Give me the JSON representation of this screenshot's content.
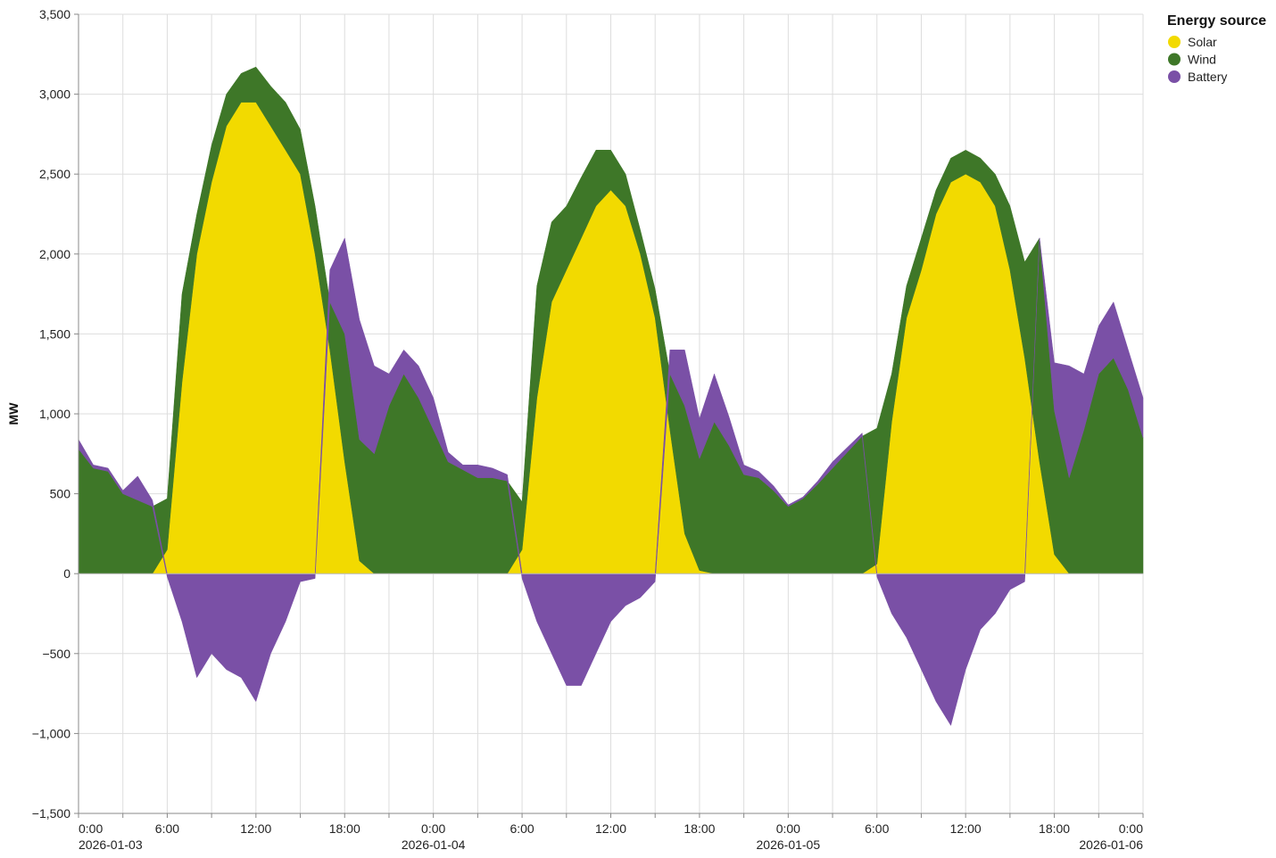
{
  "chart_data": {
    "type": "area",
    "stacked": true,
    "title": "",
    "ylabel": "MW",
    "xlabel": "",
    "ylim": [
      -1500,
      3500
    ],
    "y_ticks": [
      -1500,
      -1000,
      -500,
      0,
      500,
      1000,
      1500,
      2000,
      2500,
      3000,
      3500
    ],
    "y_tick_labels": [
      "−1,500",
      "−1,000",
      "−500",
      "0",
      "500",
      "1,000",
      "1,500",
      "2,000",
      "2,500",
      "3,000",
      "3,500"
    ],
    "x_range_hours": [
      0,
      72
    ],
    "x_start": "2026-01-03 00:00",
    "x_end": "2026-01-06 00:00",
    "x_tick_hours": [
      0,
      6,
      12,
      18,
      24,
      30,
      36,
      42,
      48,
      54,
      60,
      66,
      72
    ],
    "x_tick_labels": [
      "0:00",
      "6:00",
      "12:00",
      "18:00",
      "0:00",
      "6:00",
      "12:00",
      "18:00",
      "0:00",
      "6:00",
      "12:00",
      "18:00",
      "0:00"
    ],
    "x_date_labels": [
      "2026-01-03",
      "2026-01-04",
      "2026-01-05",
      "2026-01-06"
    ],
    "x_date_label_hours": [
      0,
      24,
      48,
      72
    ],
    "grid": true,
    "legend": {
      "title": "Energy source",
      "position": "top-right",
      "entries": [
        "Solar",
        "Wind",
        "Battery"
      ]
    },
    "x": [
      0,
      1,
      2,
      3,
      4,
      5,
      6,
      7,
      8,
      9,
      10,
      11,
      12,
      13,
      14,
      15,
      16,
      17,
      18,
      19,
      20,
      21,
      22,
      23,
      24,
      25,
      26,
      27,
      28,
      29,
      30,
      31,
      32,
      33,
      34,
      35,
      36,
      37,
      38,
      39,
      40,
      41,
      42,
      43,
      44,
      45,
      46,
      47,
      48,
      49,
      50,
      51,
      52,
      53,
      54,
      55,
      56,
      57,
      58,
      59,
      60,
      61,
      62,
      63,
      64,
      65,
      66,
      67,
      68,
      69,
      70,
      71,
      72
    ],
    "series": [
      {
        "name": "Solar",
        "color": "#f2da00",
        "values": [
          0,
          0,
          0,
          0,
          0,
          0,
          150,
          1200,
          2000,
          2450,
          2800,
          2950,
          2950,
          2800,
          2650,
          2500,
          2000,
          1400,
          700,
          80,
          0,
          0,
          0,
          0,
          0,
          0,
          0,
          0,
          0,
          0,
          150,
          1100,
          1700,
          1900,
          2100,
          2300,
          2400,
          2300,
          2000,
          1600,
          900,
          250,
          20,
          0,
          0,
          0,
          0,
          0,
          0,
          0,
          0,
          0,
          0,
          0,
          60,
          950,
          1600,
          1900,
          2250,
          2450,
          2500,
          2450,
          2300,
          1900,
          1350,
          700,
          120,
          0,
          0,
          0,
          0,
          0,
          0
        ]
      },
      {
        "name": "Wind",
        "color": "#3e7728",
        "values": [
          780,
          660,
          640,
          500,
          460,
          420,
          320,
          550,
          250,
          230,
          200,
          180,
          220,
          250,
          300,
          280,
          300,
          300,
          800,
          760,
          750,
          1050,
          1250,
          1100,
          900,
          700,
          650,
          600,
          600,
          580,
          300,
          700,
          500,
          400,
          380,
          350,
          250,
          200,
          150,
          180,
          350,
          800,
          700,
          950,
          800,
          620,
          600,
          520,
          420,
          470,
          560,
          660,
          760,
          860,
          850,
          300,
          200,
          200,
          150,
          150,
          150,
          150,
          200,
          400,
          600,
          1400,
          900,
          600,
          900,
          1250,
          1350,
          1150,
          850
        ]
      },
      {
        "name": "Battery",
        "color": "#7a50a6",
        "values": [
          60,
          20,
          20,
          20,
          150,
          40,
          -20,
          -300,
          -650,
          -500,
          -600,
          -650,
          -800,
          -500,
          -300,
          -50,
          -30,
          200,
          600,
          750,
          550,
          200,
          150,
          200,
          200,
          60,
          30,
          80,
          60,
          40,
          -30,
          -300,
          -500,
          -700,
          -700,
          -500,
          -300,
          -200,
          -150,
          -50,
          150,
          350,
          250,
          300,
          180,
          60,
          40,
          30,
          10,
          10,
          20,
          40,
          30,
          20,
          -20,
          -250,
          -400,
          -600,
          -800,
          -950,
          -600,
          -350,
          -250,
          -100,
          -50,
          0,
          300,
          700,
          350,
          300,
          350,
          250,
          250
        ]
      }
    ]
  }
}
